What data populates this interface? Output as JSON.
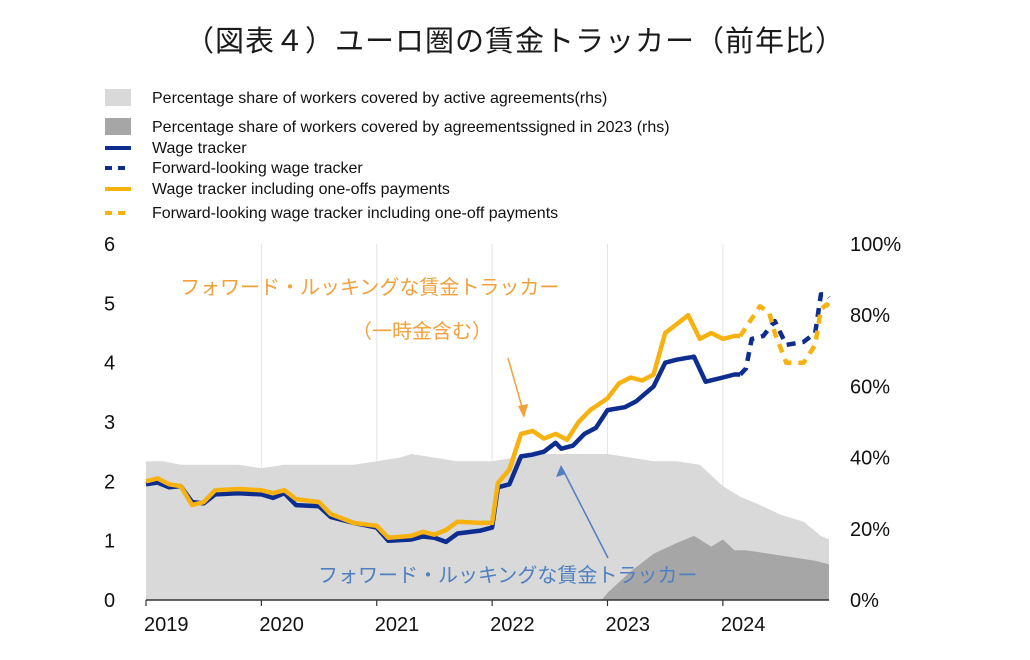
{
  "title": "（図表４）ユーロ圏の賃金トラッカー（前年比）",
  "legend": [
    {
      "label": "Percentage share of workers covered by active agreements(rhs)",
      "style": "area",
      "color": "#d9d9d9"
    },
    {
      "label": "Percentage share of workers covered by agreementssigned in 2023 (rhs)",
      "style": "area",
      "color": "#a6a6a6"
    },
    {
      "label": "Wage tracker",
      "style": "solid",
      "color": "#0d2d8f"
    },
    {
      "label": "Forward-looking wage tracker",
      "style": "dashed",
      "color": "#0d2d8f"
    },
    {
      "label": "Wage tracker including one-offs payments",
      "style": "solid",
      "color": "#f7b20f"
    },
    {
      "label": "Forward-looking wage tracker including one-off payments",
      "style": "dashed",
      "color": "#f7b20f"
    }
  ],
  "annotations": {
    "orange_line1": "フォワード・ルッキングな賃金トラッカー",
    "orange_line2": "（一時金含む）",
    "blue": "フォワード・ルッキングな賃金トラッカー"
  },
  "chart_data": {
    "type": "line",
    "x_ticks": [
      "2019",
      "2020",
      "2021",
      "2022",
      "2023",
      "2024"
    ],
    "y_left": {
      "range": [
        0,
        6
      ],
      "ticks": [
        "0",
        "1",
        "2",
        "3",
        "4",
        "5",
        "6"
      ]
    },
    "y_right": {
      "range": [
        0,
        100
      ],
      "ticks": [
        "0%",
        "20%",
        "40%",
        "60%",
        "80%",
        "100%"
      ]
    },
    "x_range": [
      2019.0,
      2024.92
    ],
    "areas": [
      {
        "name": "Percentage share of workers covered by active agreements(rhs)",
        "color": "#d9d9d9",
        "axis": "right",
        "points": [
          [
            2019.0,
            39
          ],
          [
            2019.15,
            39
          ],
          [
            2019.3,
            38
          ],
          [
            2019.5,
            38
          ],
          [
            2019.8,
            38
          ],
          [
            2020.0,
            37
          ],
          [
            2020.2,
            38
          ],
          [
            2020.5,
            38
          ],
          [
            2020.8,
            38
          ],
          [
            2021.0,
            39
          ],
          [
            2021.2,
            40
          ],
          [
            2021.3,
            41
          ],
          [
            2021.5,
            40
          ],
          [
            2021.7,
            39
          ],
          [
            2021.9,
            39
          ],
          [
            2022.0,
            39
          ],
          [
            2022.2,
            40
          ],
          [
            2022.4,
            41
          ],
          [
            2022.6,
            41
          ],
          [
            2022.8,
            41
          ],
          [
            2023.0,
            41
          ],
          [
            2023.2,
            40
          ],
          [
            2023.4,
            39
          ],
          [
            2023.6,
            39
          ],
          [
            2023.8,
            38
          ],
          [
            2024.0,
            32
          ],
          [
            2024.15,
            29
          ],
          [
            2024.3,
            27
          ],
          [
            2024.5,
            24
          ],
          [
            2024.7,
            22
          ],
          [
            2024.85,
            18
          ],
          [
            2024.92,
            17
          ]
        ]
      },
      {
        "name": "Percentage share of workers covered by agreementssigned in 2023 (rhs)",
        "color": "#a6a6a6",
        "axis": "right",
        "points": [
          [
            2022.95,
            0
          ],
          [
            2023.0,
            2
          ],
          [
            2023.2,
            8
          ],
          [
            2023.4,
            13
          ],
          [
            2023.6,
            16
          ],
          [
            2023.75,
            18
          ],
          [
            2023.9,
            15
          ],
          [
            2024.0,
            17
          ],
          [
            2024.1,
            14
          ],
          [
            2024.2,
            14
          ],
          [
            2024.4,
            13
          ],
          [
            2024.6,
            12
          ],
          [
            2024.8,
            11
          ],
          [
            2024.92,
            10
          ]
        ]
      }
    ],
    "series": [
      {
        "name": "Wage tracker",
        "style": "solid",
        "color": "#0d2d8f",
        "axis": "left",
        "points": [
          [
            2019.0,
            1.95
          ],
          [
            2019.1,
            1.98
          ],
          [
            2019.2,
            1.9
          ],
          [
            2019.3,
            1.92
          ],
          [
            2019.4,
            1.65
          ],
          [
            2019.5,
            1.63
          ],
          [
            2019.6,
            1.78
          ],
          [
            2019.8,
            1.8
          ],
          [
            2020.0,
            1.78
          ],
          [
            2020.1,
            1.72
          ],
          [
            2020.2,
            1.8
          ],
          [
            2020.3,
            1.6
          ],
          [
            2020.5,
            1.58
          ],
          [
            2020.6,
            1.4
          ],
          [
            2020.8,
            1.3
          ],
          [
            2021.0,
            1.22
          ],
          [
            2021.1,
            1.0
          ],
          [
            2021.3,
            1.02
          ],
          [
            2021.4,
            1.07
          ],
          [
            2021.5,
            1.05
          ],
          [
            2021.6,
            0.98
          ],
          [
            2021.7,
            1.12
          ],
          [
            2021.9,
            1.17
          ],
          [
            2022.0,
            1.22
          ],
          [
            2022.05,
            1.9
          ],
          [
            2022.15,
            1.95
          ],
          [
            2022.25,
            2.42
          ],
          [
            2022.35,
            2.45
          ],
          [
            2022.45,
            2.5
          ],
          [
            2022.55,
            2.65
          ],
          [
            2022.6,
            2.55
          ],
          [
            2022.7,
            2.6
          ],
          [
            2022.8,
            2.8
          ],
          [
            2022.9,
            2.9
          ],
          [
            2023.0,
            3.2
          ],
          [
            2023.15,
            3.25
          ],
          [
            2023.25,
            3.35
          ],
          [
            2023.4,
            3.6
          ],
          [
            2023.5,
            4.0
          ],
          [
            2023.6,
            4.05
          ],
          [
            2023.75,
            4.1
          ],
          [
            2023.85,
            3.68
          ],
          [
            2024.0,
            3.75
          ],
          [
            2024.1,
            3.8
          ],
          [
            2024.15,
            3.8
          ]
        ]
      },
      {
        "name": "Forward-looking wage tracker",
        "style": "dashed",
        "color": "#0d2d8f",
        "axis": "left",
        "points": [
          [
            2024.15,
            3.8
          ],
          [
            2024.2,
            3.9
          ],
          [
            2024.25,
            4.4
          ],
          [
            2024.35,
            4.45
          ],
          [
            2024.45,
            4.7
          ],
          [
            2024.55,
            4.3
          ],
          [
            2024.7,
            4.35
          ],
          [
            2024.8,
            4.5
          ],
          [
            2024.85,
            5.15
          ],
          [
            2024.9,
            5.15
          ],
          [
            2024.92,
            5.1
          ]
        ]
      },
      {
        "name": "Wage tracker including one-offs payments",
        "style": "solid",
        "color": "#f7b20f",
        "axis": "left",
        "points": [
          [
            2019.0,
            2.0
          ],
          [
            2019.1,
            2.05
          ],
          [
            2019.2,
            1.95
          ],
          [
            2019.3,
            1.92
          ],
          [
            2019.4,
            1.6
          ],
          [
            2019.5,
            1.65
          ],
          [
            2019.6,
            1.85
          ],
          [
            2019.8,
            1.87
          ],
          [
            2020.0,
            1.85
          ],
          [
            2020.1,
            1.8
          ],
          [
            2020.2,
            1.85
          ],
          [
            2020.3,
            1.7
          ],
          [
            2020.5,
            1.65
          ],
          [
            2020.6,
            1.45
          ],
          [
            2020.8,
            1.3
          ],
          [
            2021.0,
            1.25
          ],
          [
            2021.1,
            1.05
          ],
          [
            2021.3,
            1.08
          ],
          [
            2021.4,
            1.15
          ],
          [
            2021.5,
            1.1
          ],
          [
            2021.6,
            1.18
          ],
          [
            2021.7,
            1.32
          ],
          [
            2021.9,
            1.3
          ],
          [
            2022.0,
            1.3
          ],
          [
            2022.05,
            1.97
          ],
          [
            2022.15,
            2.2
          ],
          [
            2022.25,
            2.8
          ],
          [
            2022.35,
            2.85
          ],
          [
            2022.45,
            2.72
          ],
          [
            2022.55,
            2.8
          ],
          [
            2022.65,
            2.7
          ],
          [
            2022.75,
            3.0
          ],
          [
            2022.85,
            3.2
          ],
          [
            2023.0,
            3.4
          ],
          [
            2023.1,
            3.65
          ],
          [
            2023.2,
            3.75
          ],
          [
            2023.3,
            3.7
          ],
          [
            2023.4,
            3.8
          ],
          [
            2023.5,
            4.5
          ],
          [
            2023.6,
            4.65
          ],
          [
            2023.7,
            4.8
          ],
          [
            2023.8,
            4.4
          ],
          [
            2023.9,
            4.5
          ],
          [
            2024.0,
            4.4
          ],
          [
            2024.1,
            4.45
          ],
          [
            2024.15,
            4.45
          ]
        ]
      },
      {
        "name": "Forward-looking wage tracker including one-off payments",
        "style": "dashed",
        "color": "#f7b20f",
        "axis": "left",
        "points": [
          [
            2024.15,
            4.45
          ],
          [
            2024.22,
            4.65
          ],
          [
            2024.32,
            4.95
          ],
          [
            2024.4,
            4.85
          ],
          [
            2024.45,
            4.5
          ],
          [
            2024.55,
            4.0
          ],
          [
            2024.7,
            4.0
          ],
          [
            2024.8,
            4.3
          ],
          [
            2024.85,
            4.9
          ],
          [
            2024.9,
            4.98
          ],
          [
            2024.92,
            4.95
          ]
        ]
      }
    ]
  }
}
